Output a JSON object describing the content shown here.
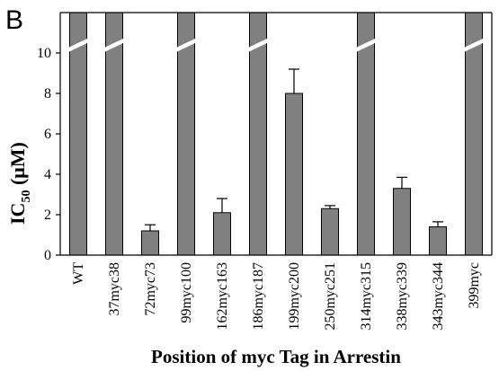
{
  "panel_label": "B",
  "chart_data": {
    "type": "bar",
    "categories": [
      "WT",
      "37myc38",
      "72myc73",
      "99myc100",
      "162myc163",
      "186myc187",
      "199myc200",
      "250myc251",
      "314myc315",
      "338myc339",
      "343myc344",
      "399myc"
    ],
    "values": [
      12,
      12,
      1.2,
      12,
      2.1,
      12,
      8.0,
      2.3,
      12,
      3.3,
      1.4,
      12
    ],
    "errors": [
      0,
      0,
      0.3,
      0,
      0.7,
      0,
      1.2,
      0.15,
      0,
      0.55,
      0.25,
      0
    ],
    "broken": [
      true,
      true,
      false,
      true,
      false,
      true,
      false,
      false,
      true,
      false,
      false,
      true
    ],
    "ylabel": "IC",
    "ylabel_subscript": "50",
    "ylabel_unit": " (μM)",
    "xlabel": "Position of myc Tag in Arrestin",
    "yticks": [
      0,
      2,
      4,
      6,
      8,
      10
    ],
    "ylim": [
      0,
      12
    ],
    "axis_break_at": 10.5,
    "bar_color": "#808080",
    "grid": false
  }
}
